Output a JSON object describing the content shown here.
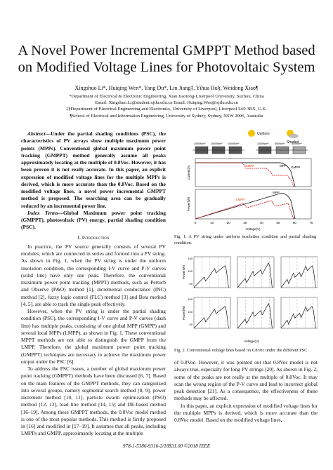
{
  "header": {
    "title_lines": [
      "A Novel Power Incremental GMPPT Method based",
      "on Modified Voltage Lines for Photovoltaic System"
    ],
    "authors": "Xingshuo Li*, Huiqing Wen*, Yang Du*, Lin Jiang‡, Yihua Hu§, Weidong Xiao¶",
    "affiliations": [
      "*Department of Electrical & Electronic Engineering, Xian Jiaotong-Liverpool University, Suzhou, China",
      "Email: Xingshuo.Li@student.xjtlu.edu.cn Email: Huiqing.Wen@xjtlu.edu.cn",
      "‡§Department of Electrical Engineering and Electronics, University of Liverpool, Liverpool L69 3BX, U.K.",
      "¶School of Electrical and Information Engineering, University of Sydney, Sydney, NSW 2006, Australia"
    ]
  },
  "left_column": {
    "abstract": {
      "label": "Abstract—",
      "text": "Under the partial shading conditions (PSC), the characteristics of PV arrays show multiple maximum power points (MPPs). Conventional global maximum power point tracking (GMPPT) method generally assume all peaks approximately locating at the multiple of 0.8Voc. However, it has been proven it is not really accurate. In this paper, an explicit expression of modified voltage lines for the multiple MPPs is derived, which is more accurate than the 0.8Voc. Based on the modified voltage lines, a novel power incremental GMPPT method is proposed. The searching area can be gradually reduced by an incremental power line."
    },
    "index_terms": {
      "label": "Index Terms—",
      "text": "Global Maximum power point tracking (GMPPT), photovoltaic (PV) energy, partial shading condition (PSC)."
    },
    "section_heading": "I. Introduction",
    "paragraphs": [
      "In practice, the PV source generally consists of several PV modules, which are connected in series and formed into a PV string. As shown in Fig. 1, when the PV string is under the uniform insolation condition, the corresponding I-V curve and P-V curves (solid line) have only one peak. Therefore, the conventional maximum power point tracking (MPPT) methods, such as Perturb and Observe (P&O) method [1], incremental conductance (INC) method [2], fuzzy logic control (FLC) method [3] and Beta method [4, 5], are able to track the single peak effectively.",
      "However, when the PV string is under the partial shading condition (PSC), the corresponding I-V curve and P-V curves (dash line) has multiple peaks, consisting of one global MPP (GMPP) and several local MPPs (LMPP), as shown in Fig. 1. These conventional MPPT methods are not able to distinguish the GMPP from the LMPP. Therefore, the global maximum power point tracking (GMPPT) techniques are necessary to achieve the maximum power output under the PSC [6].",
      "To address the PSC issues, a number of global maximum power point tracking (GMPPT) methods have been discussed [6, 7]. Based on the main features of the GMPPT methods, they can categorized into several groups, namely segmental search method [8, 9], power increment method [10, 11], particle swarm optimization (PSO) method [12, 13], load line method [14, 15] and DE-based method [16–19]. Among these GMPPT methods, the 0.8Voc model method is one of the most popular methods. This method is firstly proposed in [16] and modified in [17–19]. It assumes that all peaks, including LMPPs and GMPP, approximately locating at the multiple"
    ]
  },
  "figures": [
    {
      "labels": {
        "uniform": "Uniform",
        "shaded": "Shaded",
        "irr_1000": "1000W/m²",
        "irr_800": "800W/m²",
        "irr_600": "600W/m²",
        "gmpp": "GMPP",
        "lmpp": "LMPP",
        "mpp": "MPP",
        "current": "Current(A)",
        "power": "Power(W)",
        "voltage": "Voltage(V)"
      },
      "x_tick_labels": [
        "0",
        "10",
        "20",
        "30",
        "40",
        "50",
        "60",
        "70"
      ],
      "caption": "Fig. 1.  A PV string under uniform insolation condition and partial shading condition."
    },
    {
      "labels": {
        "power": "Power(W)",
        "voltage": "Voltage(V)"
      },
      "y_tick_labels": [
        "150",
        "100",
        "50"
      ],
      "caption": "Fig. 2.  Conventional voltage lines based on 0.8Voc under the different PSC."
    }
  ],
  "right_column": {
    "paragraphs": [
      "of 0.8Voc. However, it was pointed out that 0.8Voc model is not always true, especially for long PV strings [20]. As shown in Fig. 2, some of the peaks are not really at the multiple of 0.8Voc. It may scan the wrong region of the P-V curve and lead to incorrect global peak detection [21]. As a consequence, the effectiveness of these methods may be affected.",
      "In this paper, an explicit expression of modified voltage lines for the multiple MPPs is derived, which is more accurate than the 0.8Voc model. Based on the modified voltage lines,"
    ]
  },
  "footer": "978-1-5386-9316-2/18$31.00 ©2018 IEEE"
}
